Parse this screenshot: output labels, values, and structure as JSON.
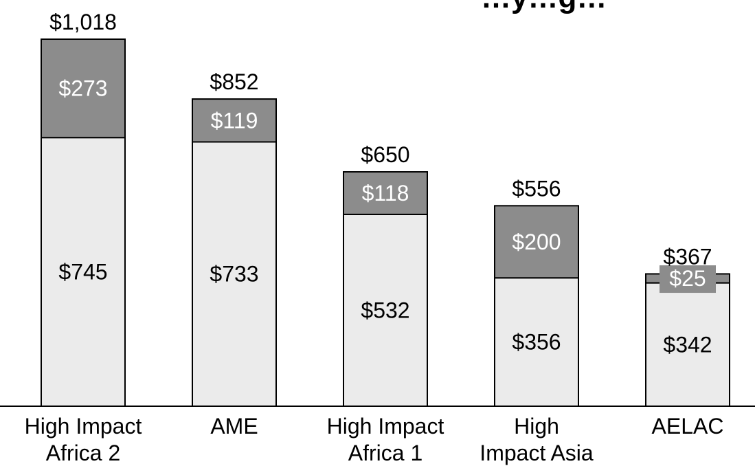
{
  "chart_data": {
    "type": "bar",
    "stacked": true,
    "title": "…y…g…",
    "xlabel": "",
    "ylabel": "",
    "ylim": [
      0,
      1018
    ],
    "categories": [
      [
        "High Impact",
        "Africa 2"
      ],
      [
        "AME"
      ],
      [
        "High Impact",
        "Africa 1"
      ],
      [
        "High",
        "Impact Asia"
      ],
      [
        "AELAC"
      ]
    ],
    "series": [
      {
        "values": [
          745,
          733,
          532,
          356,
          342
        ],
        "labels": [
          "$745",
          "$733",
          "$532",
          "$356",
          "$342"
        ],
        "color": "#ebebeb",
        "text_color": "#000000"
      },
      {
        "values": [
          273,
          119,
          118,
          200,
          25
        ],
        "labels": [
          "$273",
          "$119",
          "$118",
          "$200",
          "$25"
        ],
        "color": "#8c8c8c",
        "text_color": "#ffffff"
      }
    ],
    "totals": [
      "$1,018",
      "$852",
      "$650",
      "$556",
      "$367"
    ],
    "grid": false,
    "legend": "none"
  }
}
